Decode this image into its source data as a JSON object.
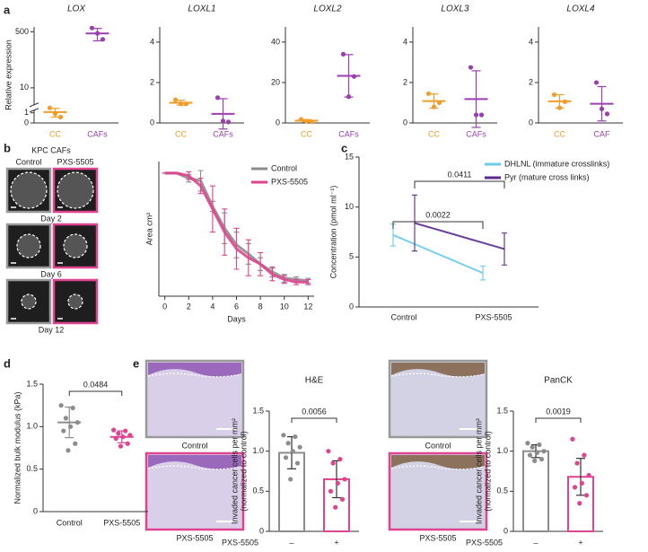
{
  "panel_labels": [
    "a",
    "b",
    "c",
    "d",
    "e"
  ],
  "image_panels": {
    "b": {
      "title": "KPC CAFs",
      "columns": [
        "Control",
        "PXS-5505"
      ],
      "rows": [
        "Day 2",
        "Day 6",
        "Day 12"
      ]
    },
    "e": [
      {
        "top": "Control",
        "bottom": "PXS-5505"
      },
      {
        "top": "Control",
        "bottom": "PXS-5505"
      }
    ]
  },
  "chart_data": [
    {
      "type": "dot",
      "title": "LOX",
      "y_label": "Relative expression",
      "yscale": "symlog",
      "colored_labels": true,
      "categories": [
        "CC",
        "CAFs"
      ],
      "colors": [
        "#f39c2a",
        "#9b3fb0"
      ],
      "values": [
        [
          1.8,
          0.9,
          0.5
        ],
        [
          650,
          450,
          300
        ]
      ],
      "means": [
        1.1,
        450
      ],
      "sd": [
        0.6,
        180
      ],
      "ylim": [
        0,
        700
      ],
      "yticks": [
        0,
        1,
        10,
        500
      ]
    },
    {
      "type": "dot",
      "title": "LOXL1",
      "colored_labels": true,
      "categories": [
        "CC",
        "CAFs"
      ],
      "colors": [
        "#f39c2a",
        "#9b3fb0"
      ],
      "values": [
        [
          1.15,
          0.95,
          0.95
        ],
        [
          1.25,
          0.1,
          0.05
        ]
      ],
      "means": [
        1.0,
        0.45
      ],
      "sd": [
        0.12,
        0.75
      ],
      "ylim": [
        0,
        4.75
      ],
      "yticks": [
        0,
        2,
        4
      ]
    },
    {
      "type": "dot",
      "title": "LOXL2",
      "colored_labels": true,
      "categories": [
        "CC",
        "CAFs"
      ],
      "colors": [
        "#f39c2a",
        "#9b3fb0"
      ],
      "values": [
        [
          1.8,
          0.9,
          0.6
        ],
        [
          34,
          13,
          23
        ]
      ],
      "means": [
        1.1,
        23.3
      ],
      "sd": [
        0.6,
        10.5
      ],
      "ylim": [
        0,
        47.5
      ],
      "yticks": [
        0,
        20,
        40
      ]
    },
    {
      "type": "dot",
      "title": "LOXL3",
      "colored_labels": true,
      "categories": [
        "CC",
        "CAFs"
      ],
      "colors": [
        "#f39c2a",
        "#9b3fb0"
      ],
      "values": [
        [
          1.45,
          0.8,
          1.0
        ],
        [
          2.75,
          0.4,
          0.4
        ]
      ],
      "means": [
        1.08,
        1.18
      ],
      "sd": [
        0.35,
        1.4
      ],
      "ylim": [
        0,
        4.75
      ],
      "yticks": [
        0,
        2,
        4
      ]
    },
    {
      "type": "dot",
      "title": "LOXL4",
      "colored_labels": true,
      "categories": [
        "CC",
        "CAF"
      ],
      "colors": [
        "#f39c2a",
        "#9b3fb0"
      ],
      "values": [
        [
          1.4,
          0.75,
          1.05
        ],
        [
          2.0,
          0.7,
          0.45
        ]
      ],
      "means": [
        1.07,
        0.95
      ],
      "sd": [
        0.33,
        0.85
      ],
      "ylim": [
        0,
        4.75
      ],
      "yticks": [
        0,
        2,
        4
      ]
    },
    {
      "type": "line",
      "y_label": "Area cm²",
      "x_label": "Days",
      "legend": "upper right",
      "x": [
        0,
        1,
        2,
        3,
        4,
        5,
        6,
        7,
        8,
        9,
        10,
        11,
        12
      ],
      "series": [
        {
          "name": "Control",
          "color": "#8c8c8c",
          "values": [
            9.6,
            9.6,
            9.2,
            9.0,
            7.0,
            5.3,
            4.0,
            3.3,
            2.5,
            1.9,
            1.4,
            1.3,
            1.2
          ],
          "errors": [
            0,
            0,
            0.3,
            0.8,
            0.4,
            1.2,
            1.0,
            0.8,
            0.5,
            0.4,
            0.3,
            0.2,
            0.2
          ]
        },
        {
          "name": "PXS-5505",
          "color": "#e0438f",
          "values": [
            9.6,
            9.6,
            9.4,
            8.6,
            6.8,
            5.0,
            3.7,
            3.0,
            2.5,
            1.7,
            1.3,
            1.1,
            1.1
          ],
          "errors": [
            0,
            0,
            0.3,
            0.6,
            1.8,
            1.8,
            1.6,
            1.4,
            0.9,
            0.5,
            0.3,
            0.2,
            0.2
          ]
        }
      ],
      "xlim": [
        -0.5,
        12.5
      ],
      "xticks": [
        0,
        2,
        4,
        6,
        8,
        10,
        12
      ],
      "ylim": [
        0,
        10.5
      ]
    },
    {
      "type": "line",
      "y_label": "Concentration (pmol ml⁻¹)",
      "legend": "upper right",
      "categories": [
        "Control",
        "PXS-5505"
      ],
      "series": [
        {
          "name": "DHLNL (immature crosslinks)",
          "color": "#6ccbf0",
          "values": [
            7.2,
            3.4
          ],
          "errors": [
            1.1,
            0.7
          ]
        },
        {
          "name": "Pyr (mature cross links)",
          "color": "#5b2a8c",
          "values": [
            8.4,
            5.8
          ],
          "errors": [
            2.8,
            1.6
          ]
        }
      ],
      "annotations": [
        "0.0022",
        "0.0411"
      ],
      "ylim": [
        0,
        15
      ],
      "yticks": [
        0,
        5,
        10,
        15
      ]
    },
    {
      "type": "dot",
      "y_label": "Normalized bulk modulus (kPa)",
      "p_value": "0.0484",
      "categories": [
        "Control",
        "PXS-5505"
      ],
      "colors": [
        "#8c8c8c",
        "#e0438f"
      ],
      "values": [
        [
          1.25,
          1.22,
          1.1,
          1.05,
          1.0,
          0.95,
          0.8,
          0.72
        ],
        [
          0.96,
          0.95,
          0.92,
          0.9,
          0.88,
          0.86,
          0.8,
          0.77
        ]
      ],
      "means": [
        1.05,
        0.88
      ],
      "sd": [
        0.18,
        0.07
      ],
      "ylim": [
        0,
        1.5
      ],
      "yticks": [
        0,
        0.5,
        {
          "value": 1,
          "label": "1.0"
        },
        1.5
      ]
    },
    {
      "type": "bar",
      "title": "H&E",
      "y_label": [
        "Invaded cancer cells per mm²",
        "(normalized to control)"
      ],
      "x_label": "PXS-5505",
      "p_value": "0.0056",
      "categories": [
        "–",
        "+"
      ],
      "colors": [
        "#8c8c8c",
        "#e0438f"
      ],
      "values": [
        [
          1.2,
          1.18,
          1.1,
          1.05,
          1.0,
          0.92,
          0.85,
          0.65
        ],
        [
          1.0,
          0.9,
          0.85,
          0.65,
          0.6,
          0.5,
          0.4,
          0.3
        ]
      ],
      "means": [
        0.98,
        0.65
      ],
      "sd": [
        0.2,
        0.23
      ],
      "ylim": [
        0,
        1.5
      ],
      "yticks": [
        0,
        0.5,
        {
          "value": 1,
          "label": "1.0"
        },
        1.5
      ]
    },
    {
      "type": "bar",
      "title": "PanCK",
      "y_label": [
        "Invaded cancer cells per mm²",
        "(normalized to control)"
      ],
      "x_label": "PXS-5505",
      "p_value": "0.0019",
      "categories": [
        "–",
        "+"
      ],
      "colors": [
        "#8c8c8c",
        "#e0438f"
      ],
      "values": [
        [
          1.1,
          1.08,
          1.05,
          1.0,
          0.98,
          0.95,
          0.9,
          0.88
        ],
        [
          1.15,
          0.95,
          0.85,
          0.7,
          0.6,
          0.55,
          0.45,
          0.35
        ]
      ],
      "means": [
        1.0,
        0.68
      ],
      "sd": [
        0.08,
        0.23
      ],
      "ylim": [
        0,
        1.5
      ],
      "yticks": [
        0,
        0.5,
        {
          "value": 1,
          "label": "1.0"
        },
        1.5
      ]
    }
  ]
}
